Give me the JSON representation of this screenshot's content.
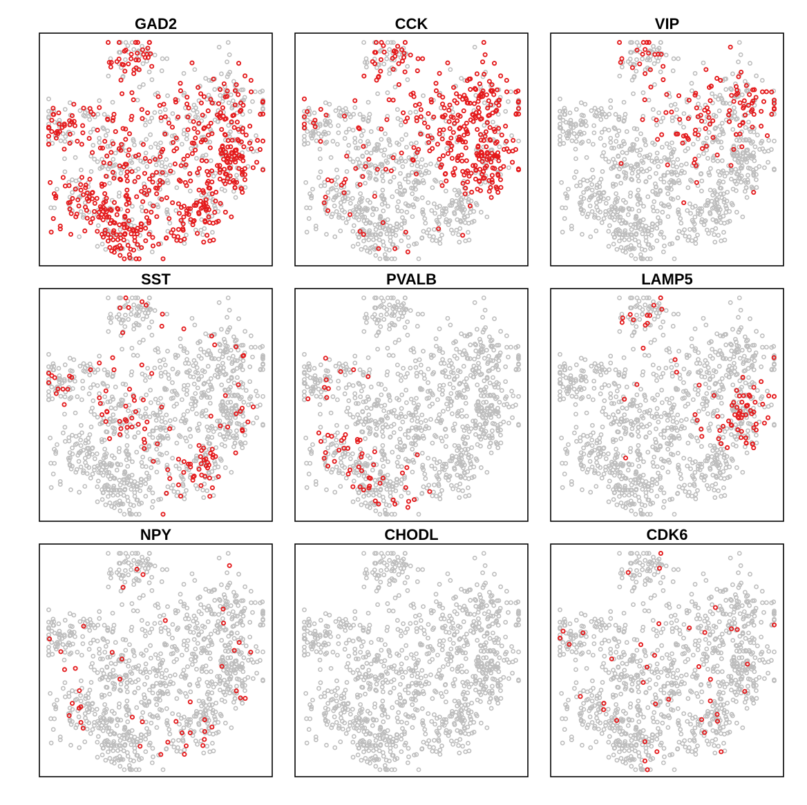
{
  "figure": {
    "colors": {
      "background_cells": "#bdbdbd",
      "highlighted_cells": "#e41a1c",
      "frame": "#000000"
    }
  },
  "chart_data": [
    {
      "type": "scatter",
      "title": "GAD2",
      "marker": "open-circle",
      "axes_visible": false,
      "grid": false,
      "highlight_pattern": "broad",
      "highlighted_fraction": 0.45
    },
    {
      "type": "scatter",
      "title": "CCK",
      "marker": "open-circle",
      "axes_visible": false,
      "grid": false,
      "highlight_pattern": "right-upper-lobe",
      "highlighted_fraction": 0.33
    },
    {
      "type": "scatter",
      "title": "VIP",
      "marker": "open-circle",
      "axes_visible": false,
      "grid": false,
      "highlight_pattern": "upper-right-band",
      "highlighted_fraction": 0.12
    },
    {
      "type": "scatter",
      "title": "SST",
      "marker": "open-circle",
      "axes_visible": false,
      "grid": false,
      "highlight_pattern": "left-center-and-lower-right",
      "highlighted_fraction": 0.08
    },
    {
      "type": "scatter",
      "title": "PVALB",
      "marker": "open-circle",
      "axes_visible": false,
      "grid": false,
      "highlight_pattern": "lower-left",
      "highlighted_fraction": 0.04
    },
    {
      "type": "scatter",
      "title": "LAMP5",
      "marker": "open-circle",
      "axes_visible": false,
      "grid": false,
      "highlight_pattern": "right-edge-and-top-cluster",
      "highlighted_fraction": 0.05
    },
    {
      "type": "scatter",
      "title": "NPY",
      "marker": "open-circle",
      "axes_visible": false,
      "grid": false,
      "highlight_pattern": "sparse",
      "highlighted_fraction": 0.03
    },
    {
      "type": "scatter",
      "title": "CHODL",
      "marker": "open-circle",
      "axes_visible": false,
      "grid": false,
      "highlight_pattern": "very-sparse",
      "highlighted_fraction": 0.002
    },
    {
      "type": "scatter",
      "title": "CDK6",
      "marker": "open-circle",
      "axes_visible": false,
      "grid": false,
      "highlight_pattern": "sparse",
      "highlighted_fraction": 0.03
    }
  ]
}
